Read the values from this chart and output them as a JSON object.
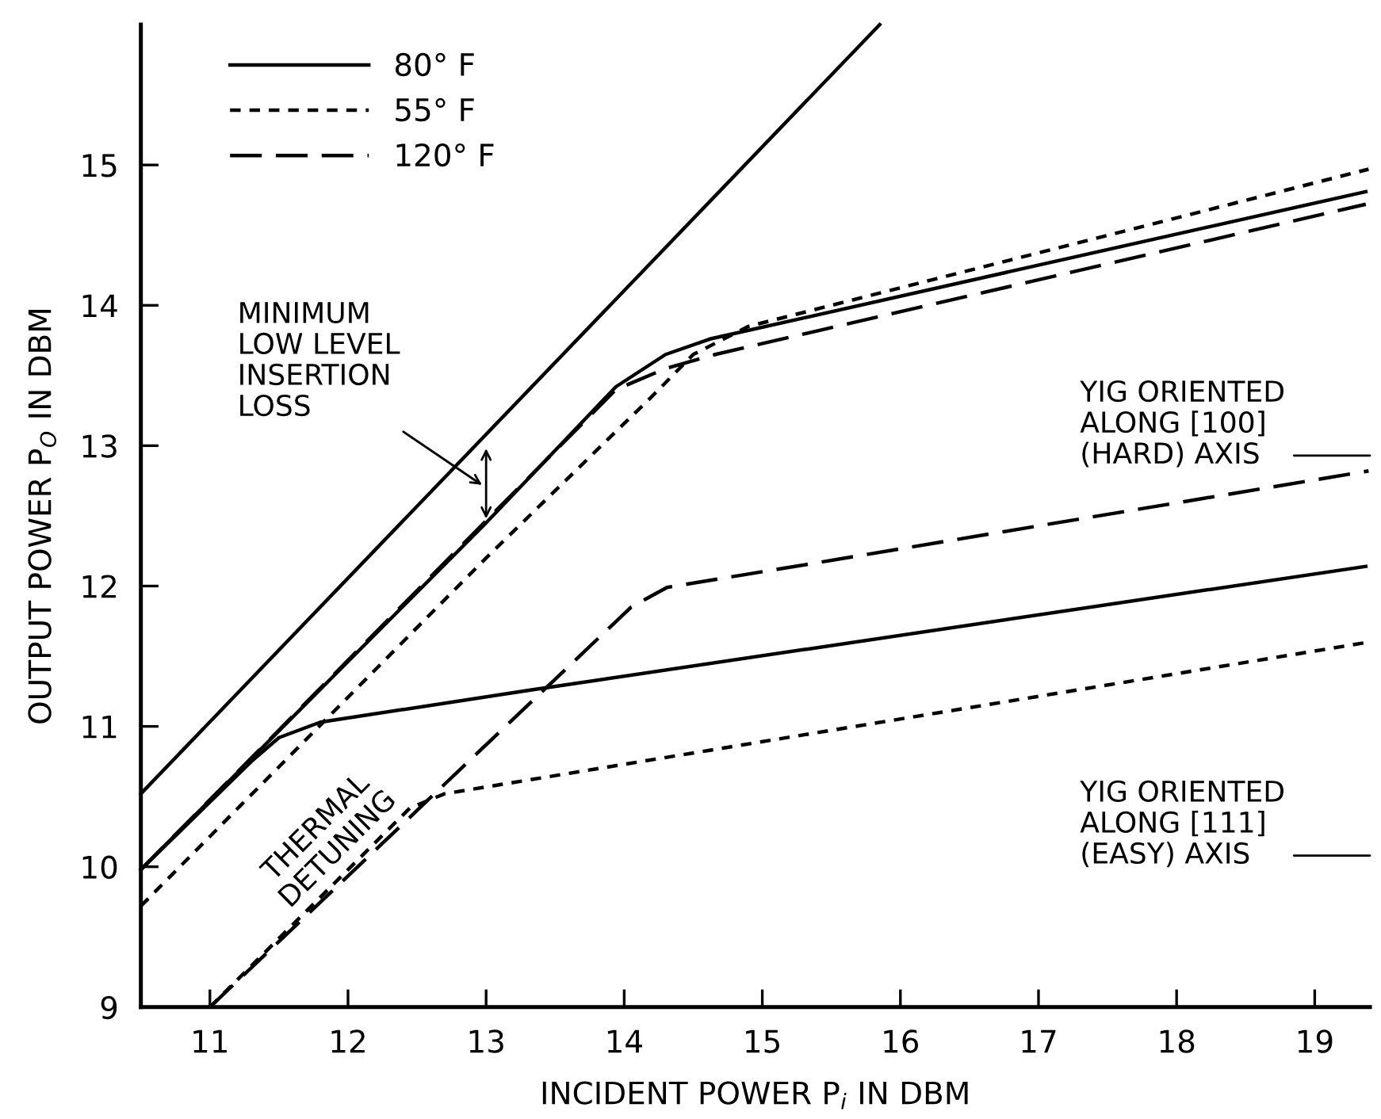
{
  "chart_data": {
    "type": "line",
    "xlabel": "INCIDENT POWER P$_{i}$ IN DBM",
    "ylabel": "OUTPUT POWER P$_{O}$ IN DBM",
    "xlim": [
      10.5,
      19.4
    ],
    "ylim": [
      9,
      16
    ],
    "xticks": [
      11,
      12,
      13,
      14,
      15,
      16,
      17,
      18,
      19
    ],
    "yticks": [
      9,
      10,
      11,
      12,
      13,
      14,
      15
    ],
    "grid": false,
    "legend": "top left",
    "marker": "none",
    "series": [
      {
        "color": "#000000",
        "line_style": "solid",
        "x": [
          10.5,
          15.85
        ],
        "values": [
          10.52,
          16.0
        ]
      },
      {
        "name": "80° F",
        "color": "#000000",
        "line_style": "solid",
        "x": [
          10.5,
          13,
          13.94,
          14.3,
          14.62,
          19.37
        ],
        "values": [
          9.98,
          12.45,
          13.42,
          13.65,
          13.76,
          14.81
        ]
      },
      {
        "name": "55° F",
        "color": "#000000",
        "line_style": "dotted",
        "x": [
          10.5,
          13,
          14.2,
          14.5,
          14.9,
          19.39
        ],
        "values": [
          9.72,
          12.2,
          13.35,
          13.65,
          13.85,
          14.97
        ]
      },
      {
        "name": "120° F",
        "color": "#000000",
        "line_style": "dashed",
        "x": [
          10.5,
          13.94,
          14.3,
          14.66,
          19.37
        ],
        "values": [
          9.98,
          13.4,
          13.55,
          13.65,
          14.72
        ]
      },
      {
        "color": "#000000",
        "line_style": "solid",
        "x": [
          10.5,
          11.3,
          11.5,
          11.8,
          13.33,
          19.37
        ],
        "values": [
          9.98,
          10.75,
          10.92,
          11.03,
          11.26,
          12.14
        ]
      },
      {
        "color": "#000000",
        "line_style": "dotted",
        "x": [
          11.0,
          12.45,
          12.7,
          14.62,
          19.39
        ],
        "values": [
          9.0,
          10.42,
          10.52,
          10.83,
          11.6
        ]
      },
      {
        "color": "#000000",
        "line_style": "dashed",
        "x": [
          11.0,
          14.05,
          14.31,
          15.42,
          19.39
        ],
        "values": [
          9.0,
          11.85,
          11.99,
          12.17,
          12.82
        ]
      }
    ],
    "annotations": [
      "MINIMUM\nLOW LEVEL\nINSERTION\nLOSS",
      "THERMAL\nDETUNING",
      "YIG ORIENTED\nALONG [100]\n(HARD) AXIS",
      "YIG ORIENTED\nALONG [111]\n(EASY) AXIS"
    ]
  }
}
